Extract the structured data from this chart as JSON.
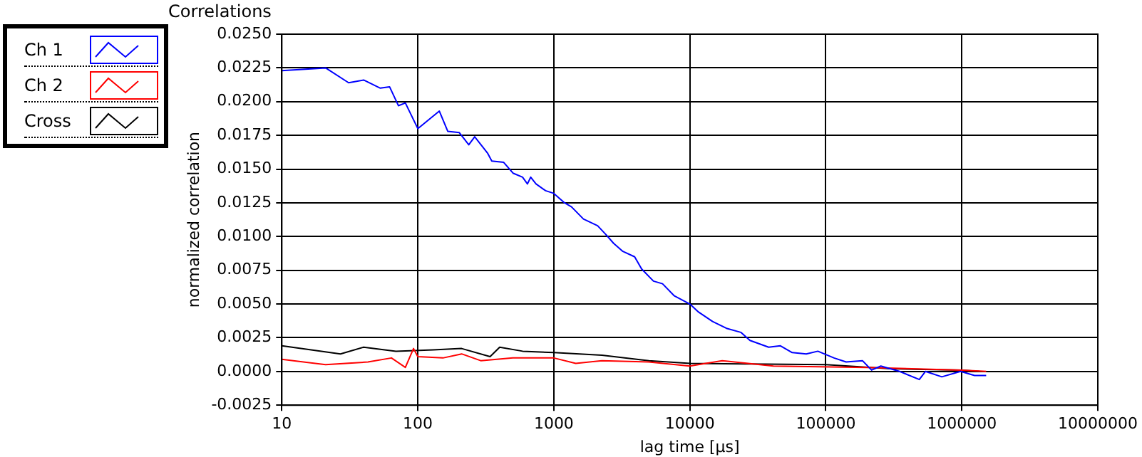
{
  "chart_data": {
    "type": "line",
    "title": "Correlations",
    "xlabel": "lag time [µs]",
    "ylabel": "normalized correlation",
    "log": "x",
    "grid": true,
    "legend": "top left",
    "marker": "none",
    "line_style": "solid",
    "xlim": [
      10,
      10000000
    ],
    "xticks": [
      10,
      100,
      1000,
      10000,
      100000,
      1000000,
      10000000
    ],
    "ylim": [
      -0.0025,
      0.025
    ],
    "yticks": [
      {
        "value": -0.0025,
        "label": "-0.0025"
      },
      {
        "value": 0,
        "label": "0.0000"
      },
      {
        "value": 0.0025,
        "label": "0.0025"
      },
      {
        "value": 0.005,
        "label": "0.0050"
      },
      {
        "value": 0.0075,
        "label": "0.0075"
      },
      {
        "value": 0.01,
        "label": "0.0100"
      },
      {
        "value": 0.0125,
        "label": "0.0125"
      },
      {
        "value": 0.015,
        "label": "0.0150"
      },
      {
        "value": 0.0175,
        "label": "0.0175"
      },
      {
        "value": 0.02,
        "label": "0.0200"
      },
      {
        "value": 0.0225,
        "label": "0.0225"
      },
      {
        "value": 0.025,
        "label": "0.0250"
      }
    ],
    "series": [
      {
        "name": "Ch 1",
        "color": "#0000ff",
        "x": [
          10,
          21,
          31,
          40,
          53,
          62,
          72,
          81,
          100,
          144,
          166,
          202,
          237,
          262,
          325,
          350,
          428,
          501,
          589,
          640,
          676,
          740,
          870,
          1000,
          1200,
          1350,
          1650,
          2100,
          2440,
          2750,
          3220,
          3930,
          4420,
          5400,
          6300,
          7700,
          10000,
          11600,
          14700,
          18600,
          23700,
          27700,
          38000,
          46400,
          56600,
          71800,
          87400,
          115000,
          141000,
          186000,
          217000,
          254000,
          349000,
          487000,
          540000,
          713000,
          980000,
          1240000,
          1510000
        ],
        "values": [
          0.0223,
          0.0225,
          0.0214,
          0.0216,
          0.021,
          0.0211,
          0.0197,
          0.0199,
          0.018,
          0.0193,
          0.0178,
          0.0177,
          0.0168,
          0.0174,
          0.0162,
          0.0156,
          0.0155,
          0.0147,
          0.0144,
          0.0139,
          0.0144,
          0.0139,
          0.0134,
          0.0132,
          0.0125,
          0.0122,
          0.0113,
          0.0108,
          0.0101,
          0.0095,
          0.0089,
          0.0085,
          0.0076,
          0.0067,
          0.0065,
          0.0056,
          0.005,
          0.0044,
          0.0037,
          0.0032,
          0.0029,
          0.0023,
          0.0018,
          0.0019,
          0.0014,
          0.0013,
          0.0015,
          0.001,
          0.0007,
          0.0008,
          0.0001,
          0.0004,
          0.0,
          -0.0006,
          0.0,
          -0.0004,
          0.0,
          -0.0003,
          -0.0003
        ]
      },
      {
        "name": "Ch 2",
        "color": "#ff0000",
        "x": [
          10,
          21,
          43,
          64,
          81,
          93,
          100,
          153,
          210,
          290,
          500,
          1000,
          1450,
          2260,
          5000,
          10000,
          17300,
          41200,
          200000,
          1000000,
          1510000
        ],
        "values": [
          0.0009,
          0.0005,
          0.0007,
          0.001,
          0.0003,
          0.0017,
          0.0011,
          0.001,
          0.0013,
          0.0008,
          0.001,
          0.001,
          0.0006,
          0.0008,
          0.0007,
          0.0004,
          0.0008,
          0.0004,
          0.0003,
          0.0001,
          0.0
        ]
      },
      {
        "name": "Cross",
        "color": "#000000",
        "x": [
          10,
          27,
          40,
          69,
          130,
          210,
          340,
          400,
          590,
          1000,
          2260,
          5000,
          10000,
          100000,
          300000,
          1000000,
          1350000
        ],
        "values": [
          0.0019,
          0.0013,
          0.0018,
          0.0015,
          0.0016,
          0.0017,
          0.0011,
          0.0018,
          0.0015,
          0.0014,
          0.0012,
          0.0008,
          0.0006,
          0.0005,
          0.0002,
          0.0001,
          0.0
        ]
      }
    ]
  }
}
